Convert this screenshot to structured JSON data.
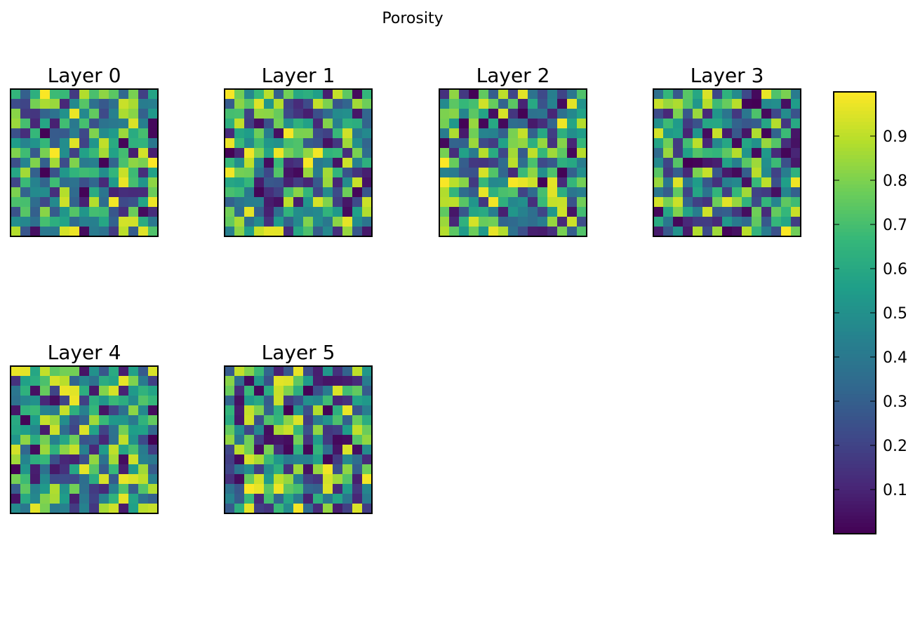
{
  "figure": {
    "title": "Porosity"
  },
  "chart_data": {
    "type": "heatmap",
    "title": "Porosity",
    "colormap": "viridis",
    "grid_size": [
      15,
      15
    ],
    "color_range": [
      0.0,
      1.0
    ],
    "colorbar": {
      "ticks": [
        0.1,
        0.2,
        0.3,
        0.4,
        0.5,
        0.6,
        0.7,
        0.8,
        0.9
      ],
      "tick_labels": [
        "0.1",
        "0.2",
        "0.3",
        "0.4",
        "0.5",
        "0.6",
        "0.7",
        "0.8",
        "0.9"
      ],
      "placement": "right"
    },
    "axes_ticks": false,
    "panels": [
      {
        "title": "Layer 0",
        "values": []
      },
      {
        "title": "Layer 1",
        "values": []
      },
      {
        "title": "Layer 2",
        "values": []
      },
      {
        "title": "Layer 3",
        "values": []
      },
      {
        "title": "Layer 4",
        "values": []
      },
      {
        "title": "Layer 5",
        "values": []
      }
    ]
  }
}
